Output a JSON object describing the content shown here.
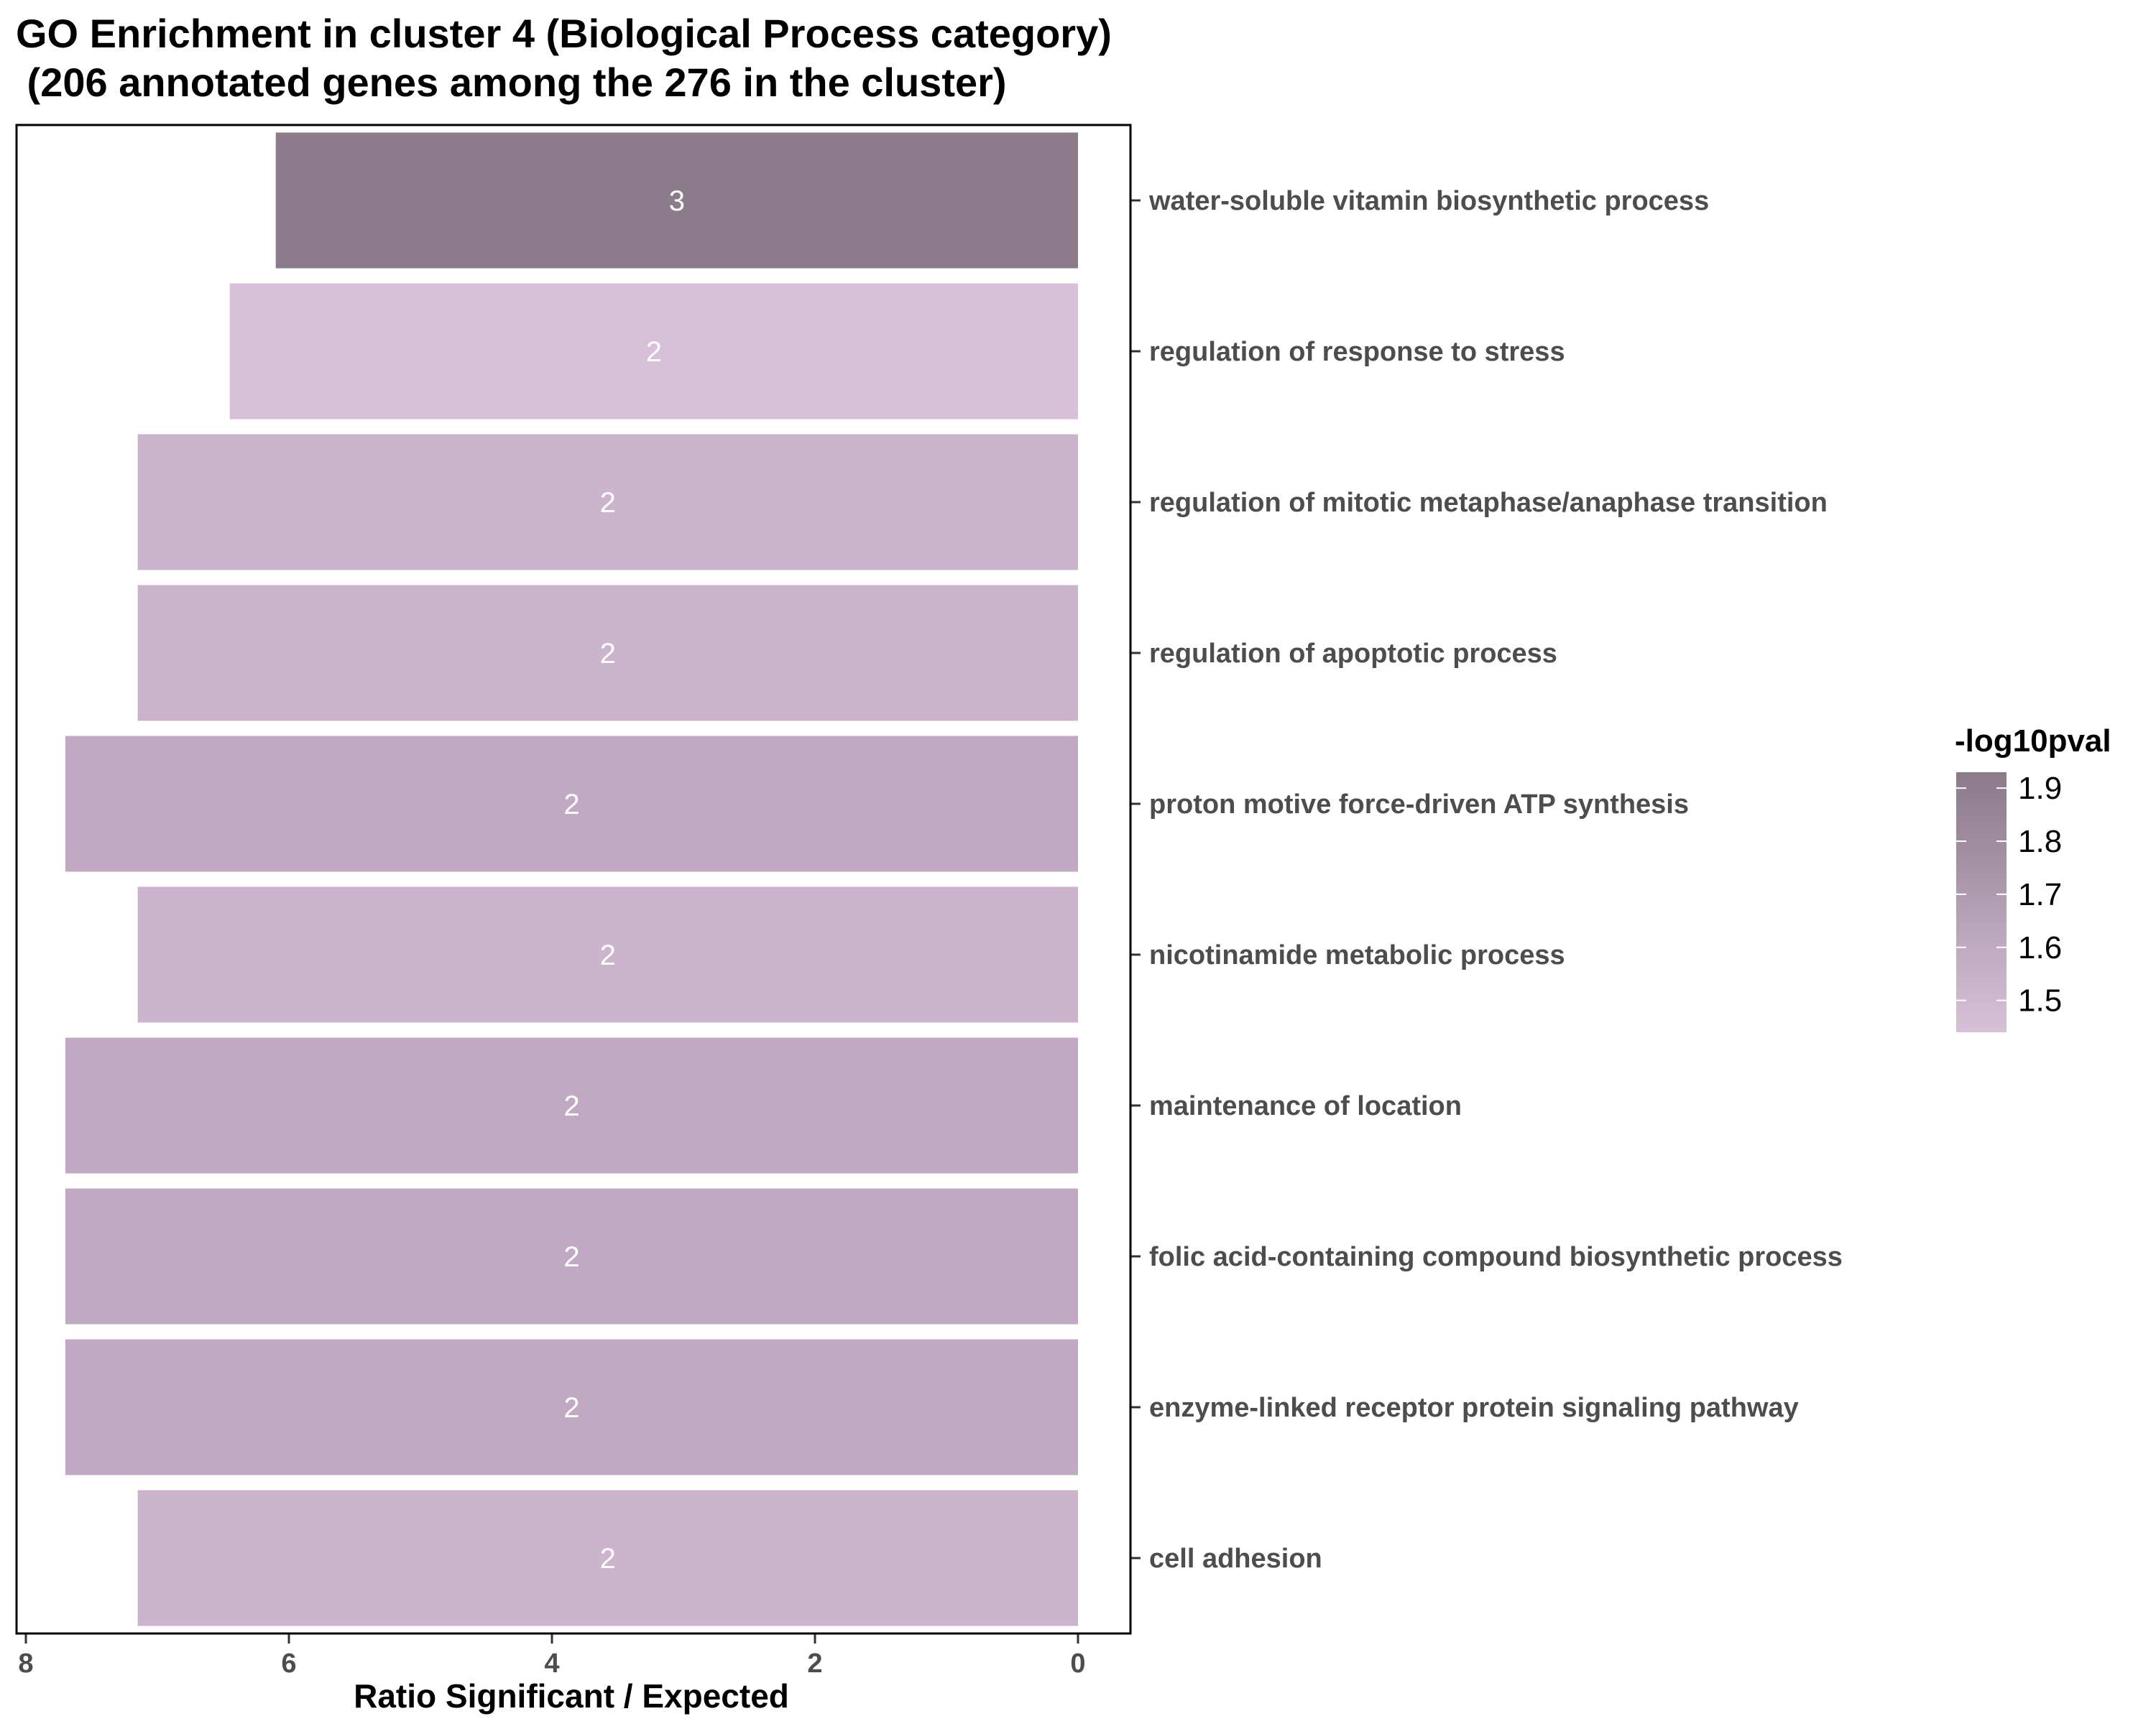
{
  "chart_data": {
    "type": "bar",
    "orientation": "horizontal",
    "x_reversed": true,
    "title_line1": "GO Enrichment in cluster 4 (Biological Process category)",
    "title_line2": " (206 annotated genes among the 276 in the cluster)",
    "xlabel": "Ratio Significant / Expected",
    "ylabel": "",
    "xlim": [
      8.15,
      0
    ],
    "xticks": [
      8,
      6,
      4,
      2,
      0
    ],
    "grid": false,
    "legend": {
      "title": "-log10pval",
      "placement": "right",
      "ticks": [
        1.9,
        1.8,
        1.7,
        1.6,
        1.5
      ],
      "range": [
        1.44,
        1.93
      ],
      "color_low": "#d8c1d8",
      "color_high": "#8a7a8a"
    },
    "categories": [
      "water-soluble vitamin biosynthetic process",
      "regulation of response to stress",
      "regulation of mitotic metaphase/anaphase transition",
      "regulation of apoptotic process",
      "proton motive force-driven ATP synthesis",
      "nicotinamide metabolic process",
      "maintenance of location",
      "folic acid-containing compound biosynthetic process",
      "enzyme-linked receptor protein signaling pathway",
      "cell adhesion"
    ],
    "values": [
      6.1,
      6.45,
      7.15,
      7.15,
      7.7,
      7.15,
      7.7,
      7.7,
      7.7,
      7.15
    ],
    "labels": [
      "3",
      "2",
      "2",
      "2",
      "2",
      "2",
      "2",
      "2",
      "2",
      "2"
    ],
    "colors": [
      "#8b7b8b",
      "#d8c0d8",
      "#ccb4cc",
      "#ccb4cc",
      "#c1a9c3",
      "#ccb4cc",
      "#c1a9c3",
      "#c1a9c3",
      "#c1a9c3",
      "#ccb4cc"
    ],
    "pvals": [
      1.92,
      1.45,
      1.55,
      1.55,
      1.62,
      1.55,
      1.62,
      1.62,
      1.62,
      1.55
    ]
  }
}
